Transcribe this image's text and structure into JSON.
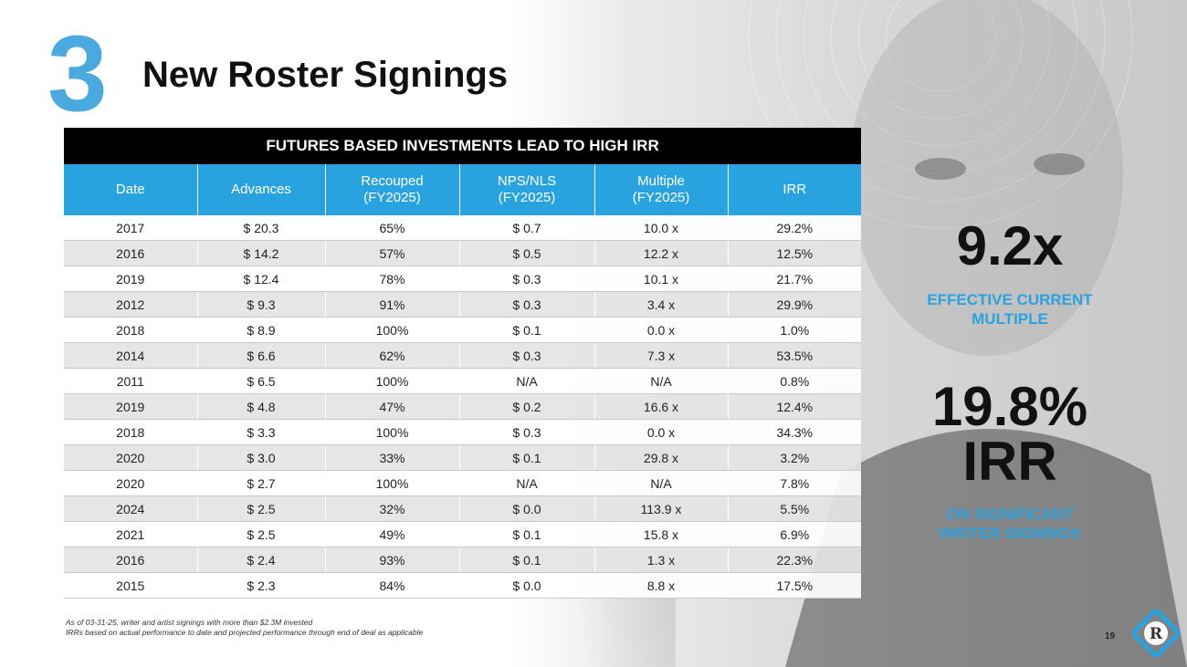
{
  "slide": {
    "number": "3",
    "title": "New Roster Signings",
    "page_number": "19"
  },
  "table": {
    "banner": "FUTURES BASED INVESTMENTS LEAD TO HIGH IRR",
    "columns": [
      {
        "line1": "Date",
        "line2": ""
      },
      {
        "line1": "Advances",
        "line2": ""
      },
      {
        "line1": "Recouped",
        "line2": "(FY2025)"
      },
      {
        "line1": "NPS/NLS",
        "line2": "(FY2025)"
      },
      {
        "line1": "Multiple",
        "line2": "(FY2025)"
      },
      {
        "line1": "IRR",
        "line2": ""
      }
    ],
    "rows": [
      [
        "2017",
        "$ 20.3",
        "65%",
        "$ 0.7",
        "10.0 x",
        "29.2%"
      ],
      [
        "2016",
        "$ 14.2",
        "57%",
        "$ 0.5",
        "12.2 x",
        "12.5%"
      ],
      [
        "2019",
        "$ 12.4",
        "78%",
        "$ 0.3",
        "10.1 x",
        "21.7%"
      ],
      [
        "2012",
        "$ 9.3",
        "91%",
        "$ 0.3",
        "3.4 x",
        "29.9%"
      ],
      [
        "2018",
        "$ 8.9",
        "100%",
        "$ 0.1",
        "0.0 x",
        "1.0%"
      ],
      [
        "2014",
        "$ 6.6",
        "62%",
        "$ 0.3",
        "7.3 x",
        "53.5%"
      ],
      [
        "2011",
        "$ 6.5",
        "100%",
        "N/A",
        "N/A",
        "0.8%"
      ],
      [
        "2019",
        "$ 4.8",
        "47%",
        "$ 0.2",
        "16.6 x",
        "12.4%"
      ],
      [
        "2018",
        "$ 3.3",
        "100%",
        "$ 0.3",
        "0.0 x",
        "34.3%"
      ],
      [
        "2020",
        "$ 3.0",
        "33%",
        "$ 0.1",
        "29.8 x",
        "3.2%"
      ],
      [
        "2020",
        "$ 2.7",
        "100%",
        "N/A",
        "N/A",
        "7.8%"
      ],
      [
        "2024",
        "$ 2.5",
        "32%",
        "$ 0.0",
        "113.9 x",
        "5.5%"
      ],
      [
        "2021",
        "$ 2.5",
        "49%",
        "$ 0.1",
        "15.8 x",
        "6.9%"
      ],
      [
        "2016",
        "$ 2.4",
        "93%",
        "$ 0.1",
        "1.3 x",
        "22.3%"
      ],
      [
        "2015",
        "$ 2.3",
        "84%",
        "$ 0.0",
        "8.8 x",
        "17.5%"
      ]
    ]
  },
  "stats": {
    "multiple_value": "9.2x",
    "multiple_label_1": "EFFECTIVE CURRENT",
    "multiple_label_2": "MULTIPLE",
    "irr_value_1": "19.8%",
    "irr_value_2": "IRR",
    "irr_label_1": "ON SIGNIFICANT",
    "irr_label_2": "WRITER SIGNINGS"
  },
  "footnotes": [
    "As of 03-31-25, writer and artist signings with more than $2.3M invested",
    "IRRs based on actual performance to date and projected performance through end of deal as applicable"
  ],
  "colors": {
    "accent_blue": "#29a3e0",
    "number_blue": "#4aa9df",
    "banner_black": "#000000"
  },
  "icons": {
    "logo": "diamond-r-logo-icon",
    "background": "artist-portrait-photo"
  }
}
